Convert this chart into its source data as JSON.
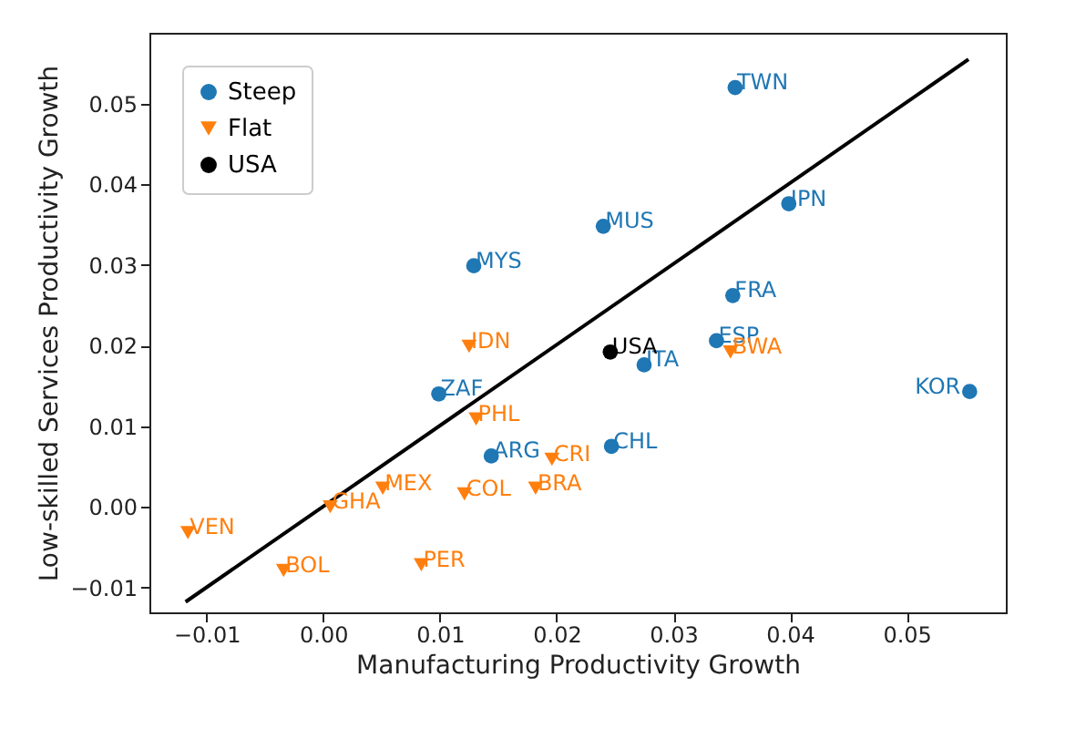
{
  "chart_data": {
    "type": "scatter",
    "xlabel": "Manufacturing Productivity Growth",
    "ylabel": "Low-skilled Services Productivity Growth",
    "xlim": [
      -0.0149,
      0.0585
    ],
    "ylim": [
      -0.0131,
      0.0588
    ],
    "xticks": [
      -0.01,
      {
        "value": 0,
        "label": "0.00"
      },
      0.01,
      0.02,
      0.03,
      0.04,
      0.05
    ],
    "yticks": [
      -0.01,
      {
        "value": 0,
        "label": "0.00"
      },
      0.01,
      0.02,
      0.03,
      0.04,
      0.05
    ],
    "grid": false,
    "legend": "top left",
    "series": [
      {
        "name": "Steep",
        "color": "#1f77b4",
        "marker": "circle",
        "x": [
          0.0353,
          0.0399,
          0.024,
          0.0129,
          0.0351,
          0.0337,
          0.0275,
          0.0099,
          0.0144,
          0.0247,
          0.0554
        ],
        "values": [
          0.052,
          0.0376,
          0.0348,
          0.0299,
          0.0262,
          0.0206,
          0.0176,
          0.014,
          0.0063,
          0.0075,
          0.0143
        ]
      },
      {
        "name": "Flat",
        "color": "#ff7f0e",
        "marker": "triangle",
        "x": [
          0.0125,
          0.0349,
          0.0131,
          0.0196,
          0.0182,
          0.0121,
          0.0051,
          0.0006,
          -0.0116,
          -0.0034,
          0.0084
        ],
        "values": [
          0.0199,
          0.0192,
          0.0109,
          0.0059,
          0.0023,
          0.0016,
          0.0023,
          0.0,
          -0.0032,
          -0.0079,
          -0.0072
        ]
      },
      {
        "name": "USA",
        "color": "#000000",
        "marker": "circle",
        "x": [
          0.0246
        ],
        "values": [
          0.0192
        ]
      },
      {
        "type": "line",
        "color": "#000000",
        "x": [
          -0.0118,
          0.0553
        ],
        "values": [
          -0.0118,
          0.0555
        ]
      }
    ],
    "annotations": [
      {
        "text": "TWN",
        "x": 0.0353,
        "y": 0.052
      },
      {
        "text": "JPN",
        "x": 0.0399,
        "y": 0.0376
      },
      {
        "text": "MUS",
        "x": 0.024,
        "y": 0.0348
      },
      {
        "text": "MYS",
        "x": 0.0129,
        "y": 0.0299
      },
      {
        "text": "FRA",
        "x": 0.0351,
        "y": 0.0262
      },
      {
        "text": "ESP",
        "x": 0.0337,
        "y": 0.0206
      },
      {
        "text": "ITA",
        "x": 0.0275,
        "y": 0.0176
      },
      {
        "text": "ZAF",
        "x": 0.0099,
        "y": 0.014
      },
      {
        "text": "ARG",
        "x": 0.0144,
        "y": 0.0063
      },
      {
        "text": "CHL",
        "x": 0.0247,
        "y": 0.0075
      },
      {
        "text": "KOR",
        "x": 0.0554,
        "y": 0.0143
      },
      {
        "text": "IDN",
        "x": 0.0125,
        "y": 0.0199
      },
      {
        "text": "BWA",
        "x": 0.0349,
        "y": 0.0192
      },
      {
        "text": "PHL",
        "x": 0.0131,
        "y": 0.0109
      },
      {
        "text": "CRI",
        "x": 0.0196,
        "y": 0.0059
      },
      {
        "text": "BRA",
        "x": 0.0182,
        "y": 0.0023
      },
      {
        "text": "COL",
        "x": 0.0121,
        "y": 0.0016
      },
      {
        "text": "MEX",
        "x": 0.0051,
        "y": 0.0023
      },
      {
        "text": "GHA",
        "x": 0.0006,
        "y": 0.0
      },
      {
        "text": "VEN",
        "x": -0.0116,
        "y": -0.0032
      },
      {
        "text": "BOL",
        "x": -0.0034,
        "y": -0.0079
      },
      {
        "text": "PER",
        "x": 0.0084,
        "y": -0.0072
      },
      {
        "text": "USA",
        "x": 0.0246,
        "y": 0.0192
      }
    ]
  }
}
